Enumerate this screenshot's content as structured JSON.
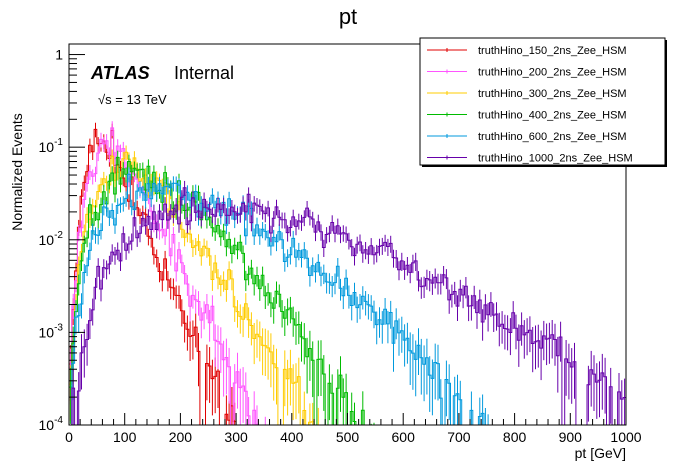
{
  "chart_data": {
    "type": "line",
    "title": "pt",
    "xlabel": "pt [GeV]",
    "ylabel": "Normalized Events",
    "xlim": [
      0,
      1000
    ],
    "ylim": [
      0.0001,
      1.3
    ],
    "yscale": "log",
    "bin_width": 5,
    "xticks": [
      0,
      100,
      200,
      300,
      400,
      500,
      600,
      700,
      800,
      900,
      1000
    ],
    "xtick_labels": [
      "0",
      "100",
      "200",
      "300",
      "400",
      "500",
      "600",
      "700",
      "800",
      "900",
      "1000"
    ],
    "yticks": [
      0.0001,
      0.001,
      0.01,
      0.1,
      1
    ],
    "ytick_labels": [
      {
        "base": "10",
        "exp": "-4"
      },
      {
        "base": "10",
        "exp": "-3"
      },
      {
        "base": "10",
        "exp": "-2"
      },
      {
        "base": "10",
        "exp": "-1"
      },
      {
        "base": "1",
        "exp": ""
      }
    ],
    "annotations": {
      "experiment": "ATLAS",
      "status": "Internal",
      "energy": "√s = 13 TeV"
    },
    "legend_position": "top-right",
    "series": [
      {
        "name": "truthHino_150_2ns_Zee_HSM",
        "color": "#e00000",
        "shape_points": [
          [
            0,
            0.0002
          ],
          [
            10,
            0.004
          ],
          [
            20,
            0.02
          ],
          [
            30,
            0.05
          ],
          [
            40,
            0.095
          ],
          [
            50,
            0.125
          ],
          [
            60,
            0.12
          ],
          [
            80,
            0.08
          ],
          [
            100,
            0.05
          ],
          [
            120,
            0.025
          ],
          [
            150,
            0.009
          ],
          [
            180,
            0.0035
          ],
          [
            210,
            0.0013
          ],
          [
            240,
            0.0005
          ],
          [
            270,
            0.0002
          ],
          [
            300,
            8e-05
          ]
        ],
        "fluctuation": 0.2,
        "last_x": 300
      },
      {
        "name": "truthHino_200_2ns_Zee_HSM",
        "color": "#ff55ff",
        "shape_points": [
          [
            0,
            0.0002
          ],
          [
            10,
            0.003
          ],
          [
            20,
            0.012
          ],
          [
            30,
            0.03
          ],
          [
            40,
            0.06
          ],
          [
            55,
            0.1
          ],
          [
            70,
            0.11
          ],
          [
            90,
            0.085
          ],
          [
            110,
            0.058
          ],
          [
            140,
            0.03
          ],
          [
            170,
            0.013
          ],
          [
            200,
            0.0055
          ],
          [
            230,
            0.0023
          ],
          [
            260,
            0.001
          ],
          [
            290,
            0.0004
          ],
          [
            330,
            0.00013
          ],
          [
            360,
            6e-05
          ]
        ],
        "fluctuation": 0.2,
        "last_x": 360
      },
      {
        "name": "truthHino_300_2ns_Zee_HSM",
        "color": "#ffcc00",
        "shape_points": [
          [
            0,
            0.00015
          ],
          [
            10,
            0.0015
          ],
          [
            20,
            0.006
          ],
          [
            40,
            0.022
          ],
          [
            60,
            0.042
          ],
          [
            80,
            0.057
          ],
          [
            100,
            0.06
          ],
          [
            130,
            0.052
          ],
          [
            160,
            0.036
          ],
          [
            200,
            0.018
          ],
          [
            250,
            0.0065
          ],
          [
            300,
            0.0022
          ],
          [
            350,
            0.0008
          ],
          [
            400,
            0.0003
          ],
          [
            450,
            9e-05
          ]
        ],
        "fluctuation": 0.2,
        "last_x": 450
      },
      {
        "name": "truthHino_400_2ns_Zee_HSM",
        "color": "#00bb00",
        "shape_points": [
          [
            0,
            0.00015
          ],
          [
            10,
            0.0012
          ],
          [
            20,
            0.004
          ],
          [
            40,
            0.016
          ],
          [
            60,
            0.03
          ],
          [
            80,
            0.042
          ],
          [
            100,
            0.049
          ],
          [
            120,
            0.05
          ],
          [
            150,
            0.044
          ],
          [
            200,
            0.03
          ],
          [
            250,
            0.016
          ],
          [
            300,
            0.0072
          ],
          [
            350,
            0.003
          ],
          [
            400,
            0.0012
          ],
          [
            450,
            0.0005
          ],
          [
            500,
            0.0002
          ],
          [
            550,
            8e-05
          ]
        ],
        "fluctuation": 0.2,
        "last_x": 550
      },
      {
        "name": "truthHino_600_2ns_Zee_HSM",
        "color": "#0099dd",
        "shape_points": [
          [
            0,
            0.0001
          ],
          [
            10,
            0.0008
          ],
          [
            20,
            0.0028
          ],
          [
            40,
            0.008
          ],
          [
            60,
            0.014
          ],
          [
            80,
            0.02
          ],
          [
            110,
            0.028
          ],
          [
            140,
            0.033
          ],
          [
            170,
            0.033
          ],
          [
            200,
            0.03
          ],
          [
            250,
            0.024
          ],
          [
            300,
            0.019
          ],
          [
            350,
            0.013
          ],
          [
            400,
            0.008
          ],
          [
            450,
            0.0047
          ],
          [
            500,
            0.0028
          ],
          [
            550,
            0.0017
          ],
          [
            600,
            0.0009
          ],
          [
            650,
            0.00045
          ],
          [
            700,
            0.0002
          ],
          [
            750,
            0.0001
          ]
        ],
        "fluctuation": 0.2,
        "last_x": 760
      },
      {
        "name": "truthHino_1000_2ns_Zee_HSM",
        "color": "#6600aa",
        "shape_points": [
          [
            0,
            0.0001
          ],
          [
            20,
            0.0005
          ],
          [
            40,
            0.0015
          ],
          [
            60,
            0.004
          ],
          [
            80,
            0.0065
          ],
          [
            100,
            0.009
          ],
          [
            130,
            0.014
          ],
          [
            170,
            0.018
          ],
          [
            220,
            0.022
          ],
          [
            280,
            0.022
          ],
          [
            330,
            0.02
          ],
          [
            380,
            0.017
          ],
          [
            430,
            0.014
          ],
          [
            480,
            0.011
          ],
          [
            530,
            0.0085
          ],
          [
            600,
            0.0055
          ],
          [
            650,
            0.0038
          ],
          [
            700,
            0.0026
          ],
          [
            750,
            0.0018
          ],
          [
            800,
            0.0012
          ],
          [
            850,
            0.0008
          ],
          [
            900,
            0.0005
          ],
          [
            950,
            0.00032
          ],
          [
            1000,
            0.0002
          ]
        ],
        "fluctuation": 0.2,
        "last_x": 1000
      }
    ]
  }
}
